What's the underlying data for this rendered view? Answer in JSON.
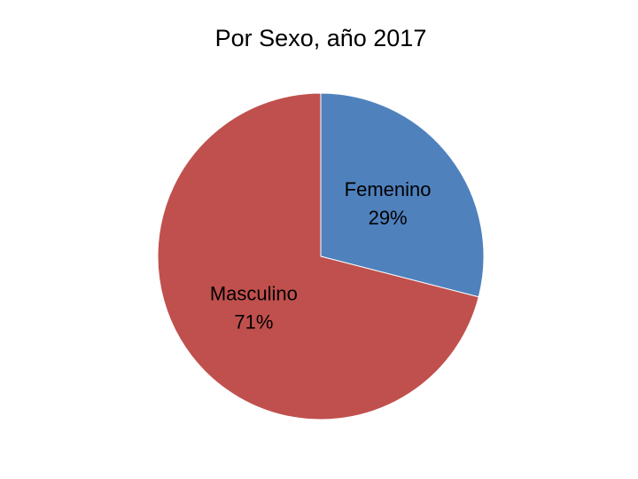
{
  "chart_data": {
    "type": "pie",
    "title": "Por Sexo, año 2017",
    "categories": [
      "Femenino",
      "Masculino"
    ],
    "values": [
      29,
      71
    ],
    "value_labels": [
      "29%",
      "71%"
    ],
    "colors": [
      "#4f81bd",
      "#c0504d"
    ]
  }
}
